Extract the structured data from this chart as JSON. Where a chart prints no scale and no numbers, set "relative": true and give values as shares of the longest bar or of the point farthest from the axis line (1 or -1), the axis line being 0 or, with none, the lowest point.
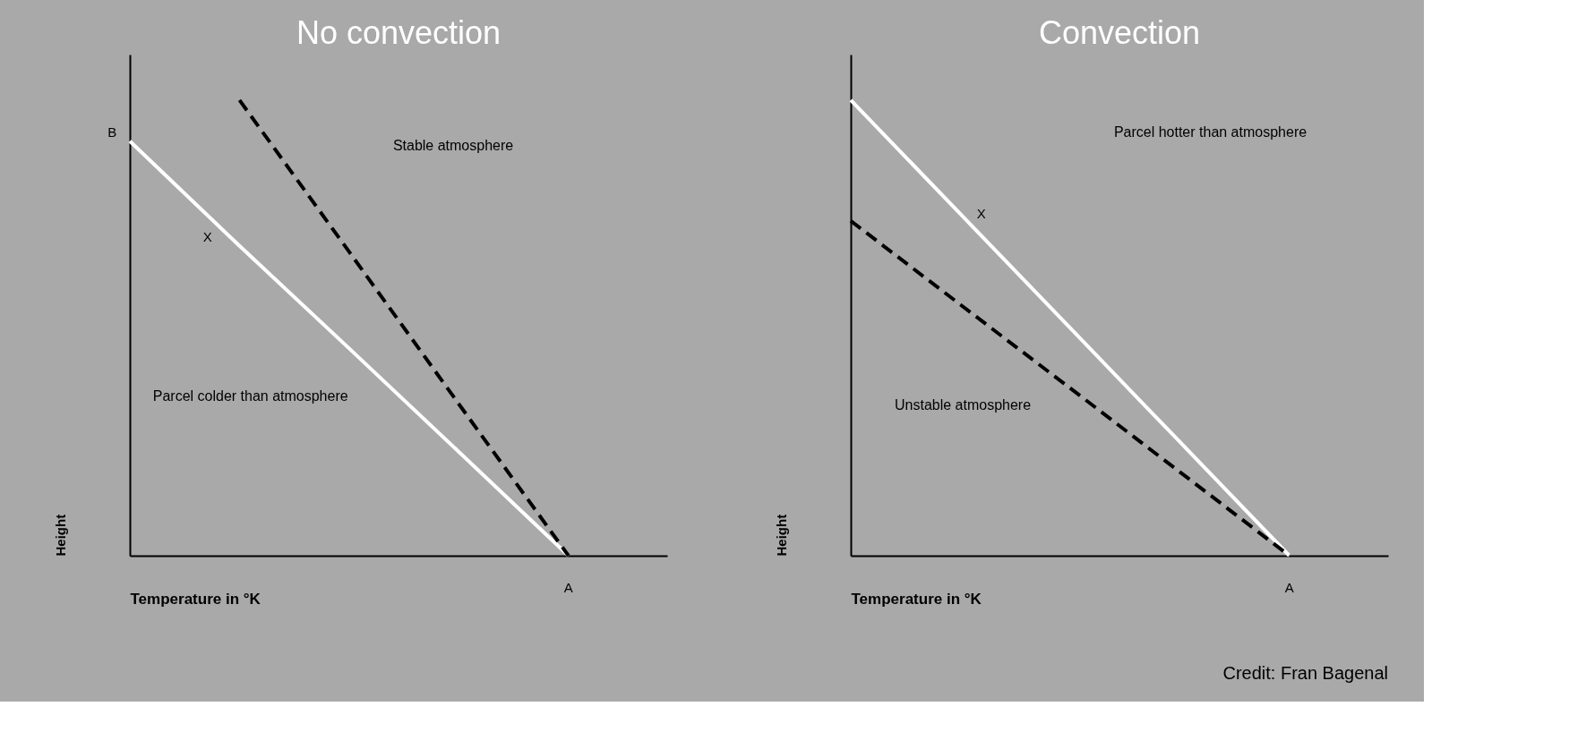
{
  "chart_data": [
    {
      "type": "line",
      "title": "No convection",
      "xlabel": "Temperature in °K",
      "ylabel": "Height",
      "categories": [
        null,
        null,
        null,
        null,
        null
      ],
      "relative": true,
      "tick_labels": false,
      "grid": false,
      "marker": "none",
      "series": [
        {
          "color": "#ffffff",
          "line_style": "solid",
          "values": [
            0.91,
            0.68,
            0.455,
            0.228,
            0
          ]
        },
        {
          "color": "#000000",
          "line_style": "dashed",
          "values": [
            null,
            1,
            0.667,
            0.333,
            0
          ]
        }
      ],
      "annotations": [
        "B",
        "A",
        "X",
        "Stable atmosphere",
        "Parcel colder than atmosphere"
      ]
    },
    {
      "type": "line",
      "title": "Convection",
      "xlabel": "Temperature in °K",
      "ylabel": "Height",
      "categories": [
        null,
        null,
        null,
        null,
        null
      ],
      "relative": true,
      "tick_labels": false,
      "grid": false,
      "marker": "none",
      "series": [
        {
          "color": "#ffffff",
          "line_style": "solid",
          "values": [
            1,
            0.75,
            0.5,
            0.25,
            0
          ]
        },
        {
          "color": "#000000",
          "line_style": "dashed",
          "values": [
            0.735,
            0.551,
            0.368,
            0.184,
            0
          ]
        }
      ],
      "annotations": [
        "A",
        "X",
        "Parcel hotter than atmosphere",
        "Unstable atmosphere",
        "Credit: Fran Bagenal"
      ]
    }
  ]
}
